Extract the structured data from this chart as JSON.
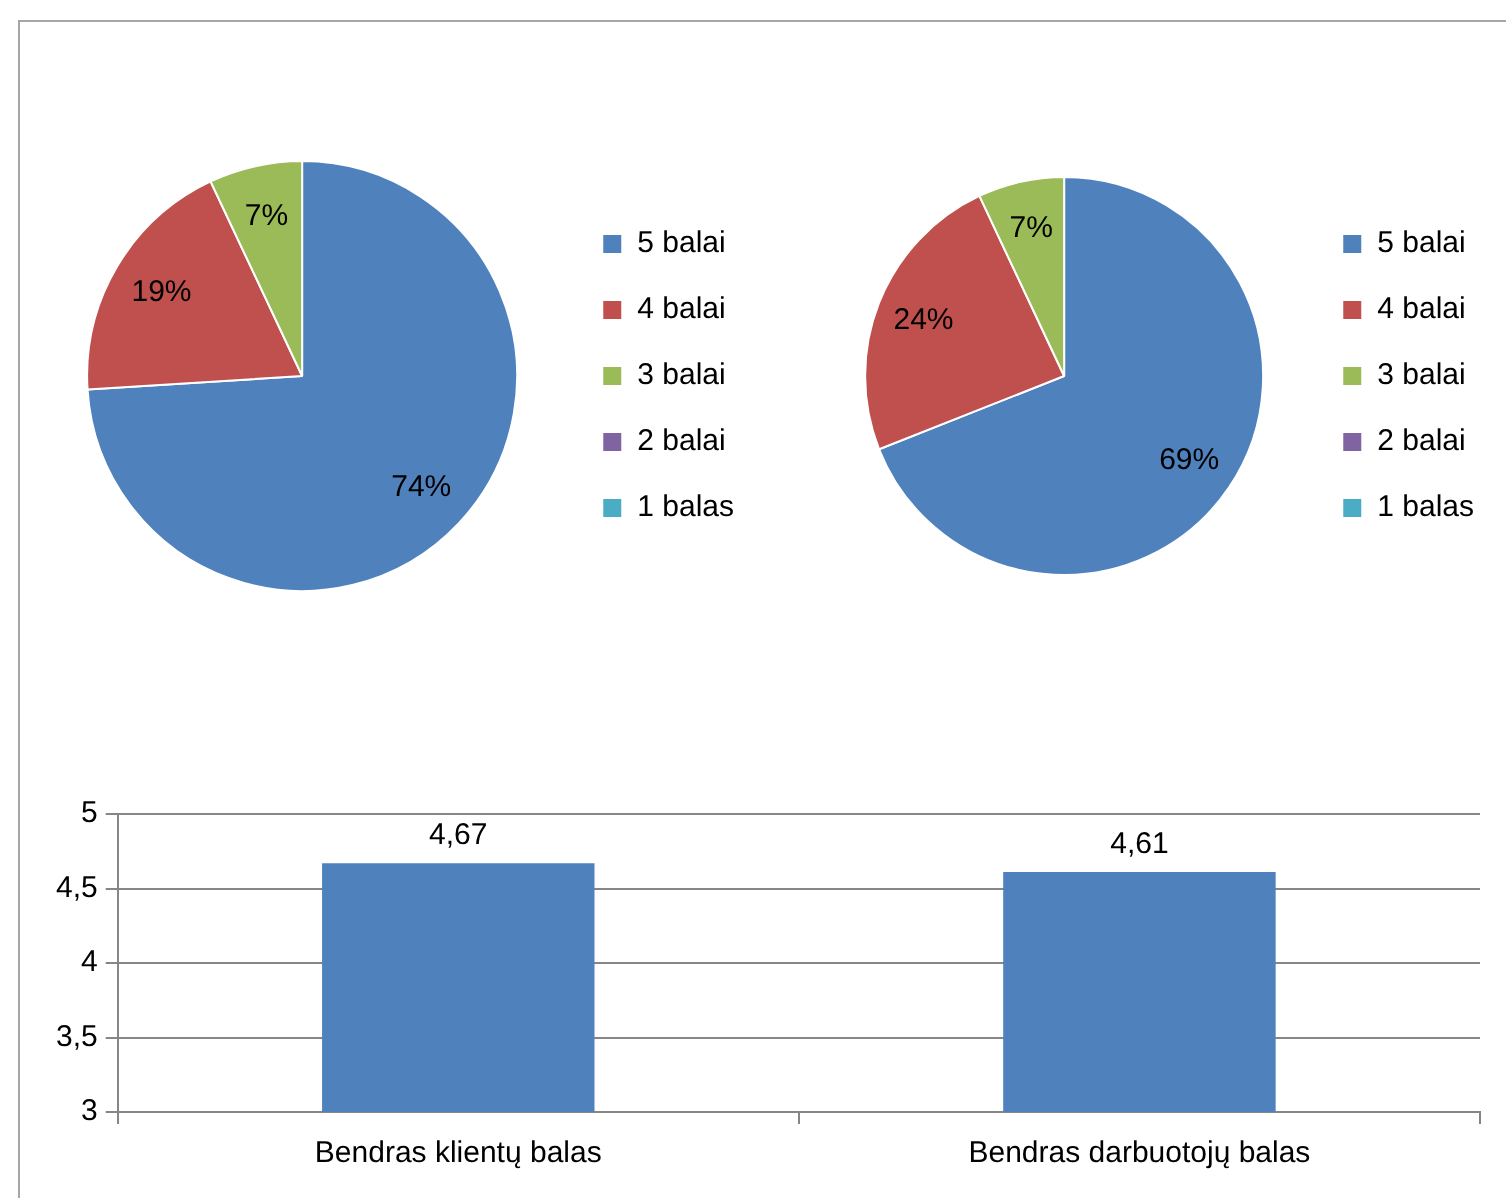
{
  "chart_data": [
    {
      "type": "pie",
      "categories": [
        "5 balai",
        "4 balai",
        "3 balai",
        "2 balai",
        "1 balas"
      ],
      "values": [
        74,
        19,
        7,
        0,
        0
      ],
      "colors": [
        "#4f81bd",
        "#c0504d",
        "#9bbb59",
        "#8064a2",
        "#4bacc6"
      ],
      "value_labels": [
        "74%",
        "19%",
        "7%",
        null,
        null
      ],
      "legend": "right"
    },
    {
      "type": "pie",
      "categories": [
        "5 balai",
        "4 balai",
        "3 balai",
        "2 balai",
        "1 balas"
      ],
      "values": [
        69,
        24,
        7,
        0,
        0
      ],
      "colors": [
        "#4f81bd",
        "#c0504d",
        "#9bbb59",
        "#8064a2",
        "#4bacc6"
      ],
      "value_labels": [
        "69%",
        "24%",
        "7%",
        null,
        null
      ],
      "legend": "right"
    },
    {
      "type": "bar",
      "categories": [
        "Bendras klientų balas",
        "Bendras darbuotojų balas"
      ],
      "values": [
        4.67,
        4.61
      ],
      "color": "#4f81bd",
      "ylim": [
        3,
        5
      ],
      "yticks": [
        3,
        {
          "value": 3.5,
          "label": "3,5"
        },
        4,
        {
          "value": 4.5,
          "label": "4,5"
        },
        5
      ],
      "grid": "y",
      "legend": false,
      "value_labels": [
        "4,67",
        "4,61"
      ]
    }
  ]
}
